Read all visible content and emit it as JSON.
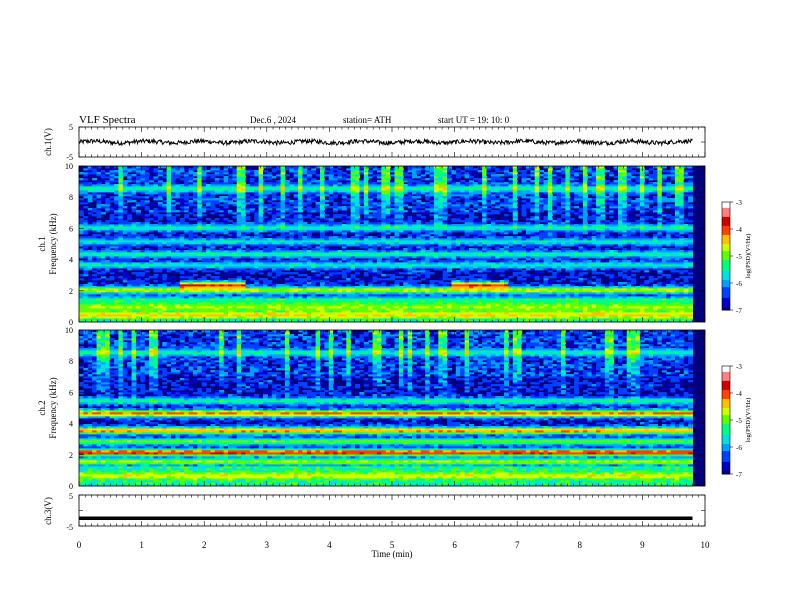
{
  "header": {
    "title": "VLF  Spectra",
    "date": "Dec.6  , 2024",
    "station": "station= ATH",
    "start_ut": "start  UT  =    19: 10: 0"
  },
  "chart_data": [
    {
      "id": "ch1-waveform",
      "type": "line",
      "ylabel": "ch.1(V)",
      "yticks": [
        "5",
        "-5"
      ],
      "ylim": [
        -5,
        5
      ],
      "series": [
        {
          "style": "noisy-trace",
          "baseline": 0,
          "amplitude": 0.9,
          "color": "#000000"
        }
      ]
    },
    {
      "id": "ch1-spectrogram",
      "type": "heatmap",
      "ylabel": "Frequency  (kHz)",
      "channel_label": "ch.1",
      "yticks": [
        "10",
        "8",
        "6",
        "4",
        "2",
        "0"
      ],
      "ylim": [
        0,
        10
      ],
      "colorbar": {
        "label": "log(PSD)(V²/Hz)",
        "ticks": [
          "-3",
          "-4",
          "-5",
          "-6",
          "-7"
        ],
        "range": [
          -7,
          -3
        ]
      },
      "bands": [
        {
          "freq_khz": 0.4,
          "log_psd": -4.4
        },
        {
          "freq_khz": 0.9,
          "log_psd": -4.8
        },
        {
          "freq_khz": 1.35,
          "log_psd": -5.2
        },
        {
          "freq_khz": 2.0,
          "log_psd": -4.7
        },
        {
          "freq_khz": 2.3,
          "log_psd": -3.8,
          "t_start_min": 1.6,
          "t_end_min": 2.6
        },
        {
          "freq_khz": 2.3,
          "log_psd": -3.8,
          "t_start_min": 5.9,
          "t_end_min": 6.8
        },
        {
          "freq_khz": 3.6,
          "log_psd": -5.6
        },
        {
          "freq_khz": 4.3,
          "log_psd": -5.4
        },
        {
          "freq_khz": 5.1,
          "log_psd": -5.6
        },
        {
          "freq_khz": 6.0,
          "log_psd": -5.5
        },
        {
          "freq_khz": 8.5,
          "log_psd": -5.4
        }
      ]
    },
    {
      "id": "ch2-spectrogram",
      "type": "heatmap",
      "ylabel": "Frequency  (kHz)",
      "channel_label": "ch.2",
      "yticks": [
        "10",
        "8",
        "6",
        "4",
        "2",
        "0"
      ],
      "ylim": [
        0,
        10
      ],
      "colorbar": {
        "label": "log(PSD)(V²/Hz)",
        "ticks": [
          "-3",
          "-4",
          "-5",
          "-6",
          "-7"
        ],
        "range": [
          -7,
          -3
        ]
      },
      "bands": [
        {
          "freq_khz": 0.6,
          "log_psd": -4.6
        },
        {
          "freq_khz": 1.5,
          "log_psd": -4.8
        },
        {
          "freq_khz": 2.1,
          "log_psd": -3.8
        },
        {
          "freq_khz": 2.8,
          "log_psd": -5.0
        },
        {
          "freq_khz": 3.5,
          "log_psd": -4.2
        },
        {
          "freq_khz": 4.6,
          "log_psd": -4.1
        },
        {
          "freq_khz": 5.4,
          "log_psd": -5.4
        },
        {
          "freq_khz": 8.5,
          "log_psd": -5.5
        }
      ]
    },
    {
      "id": "ch3-waveform",
      "type": "line",
      "ylabel": "ch.3(V)",
      "yticks": [
        "5",
        "-5"
      ],
      "ylim": [
        -5,
        5
      ],
      "series": [
        {
          "style": "flat-thick",
          "baseline": -2.5,
          "color": "#000000"
        }
      ]
    }
  ],
  "x_axis": {
    "label": "Time  (min)",
    "ticks": [
      "0",
      "1",
      "2",
      "3",
      "4",
      "5",
      "6",
      "7",
      "8",
      "9",
      "10"
    ],
    "xlim": [
      0,
      10
    ],
    "data_end_min": 9.8
  },
  "colormap": [
    "#000080",
    "#0000c8",
    "#0040ff",
    "#00a0ff",
    "#00e0e0",
    "#00ff80",
    "#60ff00",
    "#d0ff00",
    "#ffc000",
    "#ff4000",
    "#d00000",
    "#ff8080",
    "#ffffff"
  ]
}
